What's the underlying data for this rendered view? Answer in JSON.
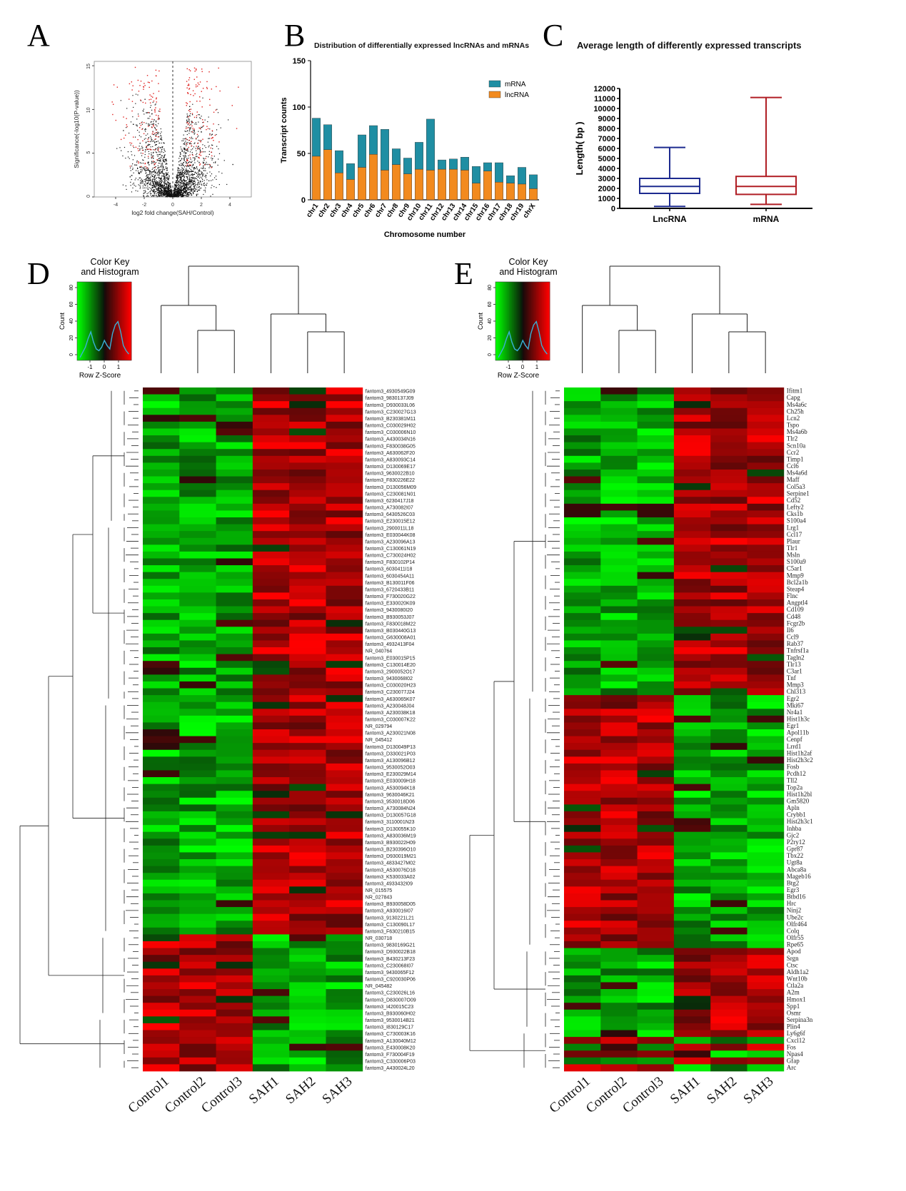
{
  "panels": {
    "A": "A",
    "B": "B",
    "C": "C",
    "D": "D",
    "E": "E"
  },
  "chart_data": [
    {
      "type": "scatter",
      "panel": "A",
      "xlabel": "log2 fold change(SAH/Control)",
      "ylabel": "Significance(-log10(P-value))",
      "xticks": [
        -4,
        -2,
        0,
        2,
        4
      ],
      "yticks": [
        0,
        5,
        10,
        15
      ],
      "xlim": [
        -5.5,
        5.5
      ],
      "ylim": [
        0,
        15.5
      ],
      "threshold_x": 0,
      "colors": {
        "ns": "#111111",
        "sig": "#e0201e"
      }
    },
    {
      "type": "bar",
      "panel": "B",
      "stacked": true,
      "title": "Distribution of differentially expressed lncRNAs and mRNAs",
      "xlabel": "Chromosome number",
      "ylabel": "Transcript counts",
      "ylim": [
        0,
        150
      ],
      "yticks": [
        0,
        50,
        100,
        150
      ],
      "categories": [
        "chr1",
        "chr2",
        "chr3",
        "chr4",
        "chr5",
        "chr6",
        "chr7",
        "chr8",
        "chr9",
        "chr10",
        "chr11",
        "chr12",
        "chr13",
        "chr14",
        "chr15",
        "chr16",
        "chr17",
        "chr18",
        "chr19",
        "chrX"
      ],
      "series": [
        {
          "name": "lncRNA",
          "color": "#f28a1e",
          "values": [
            47,
            54,
            29,
            22,
            35,
            49,
            32,
            38,
            28,
            33,
            32,
            33,
            33,
            32,
            18,
            31,
            19,
            18,
            17,
            12
          ]
        },
        {
          "name": "mRNA",
          "color": "#1f8ea3",
          "values": [
            41,
            27,
            24,
            17,
            35,
            31,
            44,
            17,
            17,
            29,
            55,
            10,
            11,
            14,
            18,
            9,
            21,
            8,
            18,
            15
          ]
        }
      ],
      "legend": "top-right"
    },
    {
      "type": "box",
      "panel": "C",
      "title": "Average length of differently expressed transcripts",
      "ylabel": "Length( bp )",
      "ylim": [
        0,
        12000
      ],
      "yticks": [
        0,
        1000,
        2000,
        3000,
        4000,
        5000,
        6000,
        7000,
        8000,
        9000,
        10000,
        11000,
        12000
      ],
      "categories": [
        "LncRNA",
        "mRNA"
      ],
      "boxes": [
        {
          "name": "LncRNA",
          "color": "#1c2a8f",
          "min": 200,
          "q1": 1500,
          "median": 2200,
          "q3": 3000,
          "max": 6100
        },
        {
          "name": "mRNA",
          "color": "#b01e24",
          "min": 400,
          "q1": 1400,
          "median": 2200,
          "q3": 3200,
          "max": 11100
        }
      ]
    },
    {
      "type": "heatmap",
      "panel": "D",
      "color_key_title": "Color Key\nand Histogram",
      "key_xlabel": "Row Z-Score",
      "key_ylabel": "Count",
      "key_xticks": [
        "-1",
        "0",
        "1"
      ],
      "key_yticks": [
        "0",
        "20",
        "40",
        "60",
        "80"
      ],
      "columns": [
        "Control1",
        "Control2",
        "Control3",
        "SAH1",
        "SAH2",
        "SAH3"
      ],
      "rows": [
        "fantom3_4930549G09",
        "fantom3_9830137J09",
        "fantom3_D930033L06",
        "fantom3_C230027G13",
        "fantom3_B230381M11",
        "fantom3_C030029H02",
        "fantom3_C030006N10",
        "fantom3_A430034N16",
        "fantom3_F830038G05",
        "fantom3_A630062F20",
        "fantom3_A830093C14",
        "fantom3_D130069E17",
        "fantom3_9630022B10",
        "fantom3_F830226E22",
        "fantom3_D130056M09",
        "fantom3_C230081N01",
        "fantom3_6230417J18",
        "fantom3_A730082I07",
        "fantom3_6430526C03",
        "fantom3_E230015E12",
        "fantom3_2900011L18",
        "fantom3_E030044K08",
        "fantom3_A230096A13",
        "fantom3_C130061N19",
        "fantom3_C730024H02",
        "fantom3_F830102P14",
        "fantom3_6030411I18",
        "fantom3_6030454A11",
        "fantom3_B130011F06",
        "fantom3_6720433B11",
        "fantom3_F730020G22",
        "fantom3_E330020K09",
        "fantom3_9430080I20",
        "fantom3_B930053J07",
        "fantom3_F830018M22",
        "fantom3_B030440G13",
        "fantom3_G630008A01",
        "fantom3_4932413F04",
        "NR_040764",
        "fantom3_E030015P15",
        "fantom3_C130014E20",
        "fantom3_2900052O17",
        "fantom3_9430068I02",
        "fantom3_C030020H23",
        "fantom3_C230077J24",
        "fantom3_A630065K07",
        "fantom3_A230048J04",
        "fantom3_A230038K18",
        "fantom3_C030007K22",
        "NR_029794",
        "fantom3_A230021N08",
        "NR_045412",
        "fantom3_D130049P13",
        "fantom3_D330021P03",
        "fantom3_A130096B12",
        "fantom3_9530052O03",
        "fantom3_E230029M14",
        "fantom3_E030009H18",
        "fantom3_A530094K18",
        "fantom3_9630046K21",
        "fantom3_9530018D06",
        "fantom3_A730084N24",
        "fantom3_D130057G18",
        "fantom3_3110001N23",
        "fantom3_D130055K10",
        "fantom3_A830036M19",
        "fantom3_B930022H09",
        "fantom3_B230396O10",
        "fantom3_D930019M21",
        "fantom3_4833427M02",
        "fantom3_A530076D18",
        "fantom3_K530033A02",
        "fantom3_4933432I09",
        "NR_015575",
        "NR_027843",
        "fantom3_B930058D05",
        "fantom3_A930016I07",
        "fantom3_9130221L21",
        "fantom3_C130090L17",
        "fantom3_F630210B15",
        "NR_030718",
        "fantom3_9830169G21",
        "fantom3_D930022B18",
        "fantom3_B430213F23",
        "fantom3_C230068I07",
        "fantom3_9430065F12",
        "fantom3_C920030P06",
        "NR_045482",
        "fantom3_C230026L16",
        "fantom3_D830007O09",
        "fantom3_I420015C23",
        "fantom3_B930060H02",
        "fantom3_9530014B21",
        "fantom3_I830129C17",
        "fantom3_C730003K16",
        "fantom3_A130040M12",
        "fantom3_E430008K20",
        "fantom3_F730004F19",
        "fantom3_C330006P03",
        "fantom3_A430024L20"
      ]
    },
    {
      "type": "heatmap",
      "panel": "E",
      "color_key_title": "Color Key\nand Histogram",
      "key_xlabel": "Row Z-Score",
      "key_ylabel": "Count",
      "key_xticks": [
        "-1",
        "0",
        "1"
      ],
      "key_yticks": [
        "0",
        "20",
        "40",
        "60",
        "80"
      ],
      "columns": [
        "Control1",
        "Control2",
        "Control3",
        "SAH1",
        "SAH2",
        "SAH3"
      ],
      "rows": [
        "Ifitm1",
        "Capg",
        "Ms4a6c",
        "Ch25h",
        "Lcn2",
        "Tspo",
        "Ms4a6b",
        "Tlr2",
        "Scn10a",
        "Ccr2",
        "Timp1",
        "Ccl6",
        "Ms4a6d",
        "Maff",
        "Col5a3",
        "Serpine1",
        "Cd52",
        "Lefty2",
        "Cks1b",
        "S100a4",
        "Lrg1",
        "Ccl17",
        "Plaur",
        "Tlr1",
        "Msln",
        "S100a9",
        "C5ar1",
        "Mmp9",
        "Bcl2a1b",
        "Steap4",
        "Flnc",
        "Angptl4",
        "Cd109",
        "Cd48",
        "Fcgr2b",
        "Il6",
        "Ccl9",
        "Rab37",
        "Tnfrsf1a",
        "Tagln2",
        "Tlr13",
        "C3ar1",
        "Tnf",
        "Mmp3",
        "Chl313",
        "Egr2",
        "Mki67",
        "Nr4a1",
        "Hist1h3c",
        "Egr1",
        "Apol11b",
        "Cenpf",
        "Lrrd1",
        "Hist1h2af",
        "Hist2h3c2",
        "Fosb",
        "Pcdh12",
        "Tll2",
        "Top2a",
        "Hist1h2bl",
        "Gm5820",
        "Apln",
        "Crybb1",
        "Hist2h3c1",
        "Inhba",
        "Gjc2",
        "P2ry12",
        "Gpr87",
        "Tbx22",
        "Ugt8a",
        "Abca8a",
        "Mageb16",
        "Btg2",
        "Egr3",
        "Btbd16",
        "Hrc",
        "Ninj2",
        "Ube2c",
        "Olfr464",
        "Colq",
        "Olfr55",
        "Rpe65",
        "Apod",
        "Srgn",
        "Ctsc",
        "Aldh1a2",
        "Wnt10b",
        "Ctla2a",
        "A2m",
        "Hmox1",
        "Spp1",
        "Osmr",
        "Serpina3n",
        "Plin4",
        "Ly6g6f",
        "Cxcl12",
        "Fos",
        "Npas4",
        "Gfap",
        "Arc"
      ]
    }
  ]
}
